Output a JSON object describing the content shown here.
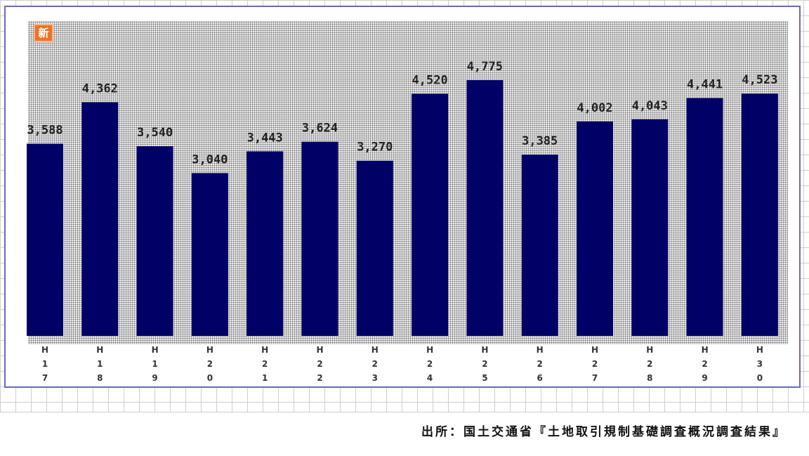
{
  "logo": {
    "text": "新"
  },
  "source_note": "出所：国土交通省『土地取引規制基礎調査概況調査結果』",
  "colors": {
    "bar": "#000066",
    "frame": "#6a6ab8",
    "label": "#222222"
  },
  "chart_data": {
    "type": "bar",
    "categories": [
      "H17",
      "H18",
      "H19",
      "H20",
      "H21",
      "H22",
      "H23",
      "H24",
      "H25",
      "H26",
      "H27",
      "H28",
      "H29",
      "H30"
    ],
    "category_labels": [
      [
        "H",
        "1",
        "7"
      ],
      [
        "H",
        "1",
        "8"
      ],
      [
        "H",
        "1",
        "9"
      ],
      [
        "H",
        "2",
        "0"
      ],
      [
        "H",
        "2",
        "1"
      ],
      [
        "H",
        "2",
        "2"
      ],
      [
        "H",
        "2",
        "3"
      ],
      [
        "H",
        "2",
        "4"
      ],
      [
        "H",
        "2",
        "5"
      ],
      [
        "H",
        "2",
        "6"
      ],
      [
        "H",
        "2",
        "7"
      ],
      [
        "H",
        "2",
        "8"
      ],
      [
        "H",
        "2",
        "9"
      ],
      [
        "H",
        "3",
        "0"
      ]
    ],
    "values": [
      3588,
      4362,
      3540,
      3040,
      3443,
      3624,
      3270,
      4520,
      4775,
      3385,
      4002,
      4043,
      4441,
      4523
    ],
    "value_labels": [
      "3,588",
      "4,362",
      "3,540",
      "3,040",
      "3,443",
      "3,624",
      "3,270",
      "4,520",
      "4,775",
      "3,385",
      "4,002",
      "4,043",
      "4,441",
      "4,523"
    ],
    "ylim": [
      0,
      4775
    ],
    "title": "",
    "xlabel": "",
    "ylabel": "",
    "grid": false,
    "legend": "none"
  }
}
